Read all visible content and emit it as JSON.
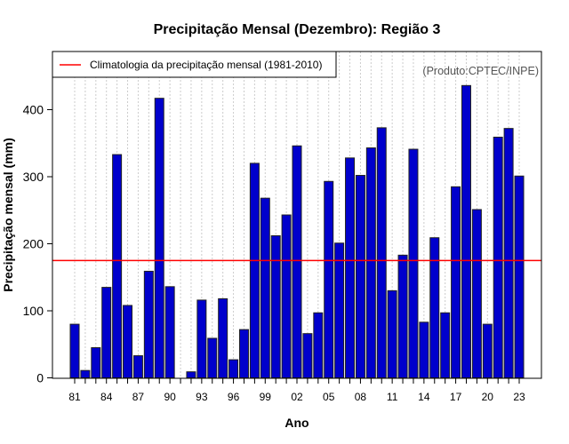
{
  "chart_data": {
    "type": "bar",
    "title": "Precipitação Mensal (Dezembro): Região 3",
    "xlabel": "Ano",
    "ylabel": "Precipitação mensal (mm)",
    "ylim": [
      0,
      450
    ],
    "yticks": [
      0,
      100,
      200,
      300,
      400
    ],
    "xtick_labels": [
      "81",
      "84",
      "87",
      "90",
      "93",
      "96",
      "99",
      "02",
      "05",
      "08",
      "11",
      "14",
      "17",
      "20",
      "23"
    ],
    "xtick_label_every": 3,
    "grid": "vertical dotted at each year",
    "categories": [
      "1981",
      "1982",
      "1983",
      "1984",
      "1985",
      "1986",
      "1987",
      "1988",
      "1989",
      "1990",
      "1991",
      "1992",
      "1993",
      "1994",
      "1995",
      "1996",
      "1997",
      "1998",
      "1999",
      "2000",
      "2001",
      "2002",
      "2003",
      "2004",
      "2005",
      "2006",
      "2007",
      "2008",
      "2009",
      "2010",
      "2011",
      "2012",
      "2013",
      "2014",
      "2015",
      "2016",
      "2017",
      "2018",
      "2019",
      "2020",
      "2021",
      "2022",
      "2023"
    ],
    "values": [
      80,
      11,
      45,
      135,
      333,
      108,
      33,
      159,
      417,
      136,
      null,
      9,
      116,
      59,
      118,
      27,
      72,
      320,
      268,
      212,
      243,
      346,
      66,
      97,
      293,
      201,
      328,
      302,
      343,
      373,
      130,
      183,
      341,
      83,
      209,
      97,
      285,
      436,
      251,
      80,
      359,
      372,
      301
    ],
    "bar_color": "#0000cc",
    "reference_line": {
      "label": "Climatologia da precipitação mensal (1981-2010)",
      "value": 175,
      "color": "#ff0000"
    },
    "legend_position": "top-left",
    "annotation": "(Produto:CPTEC/INPE)"
  }
}
